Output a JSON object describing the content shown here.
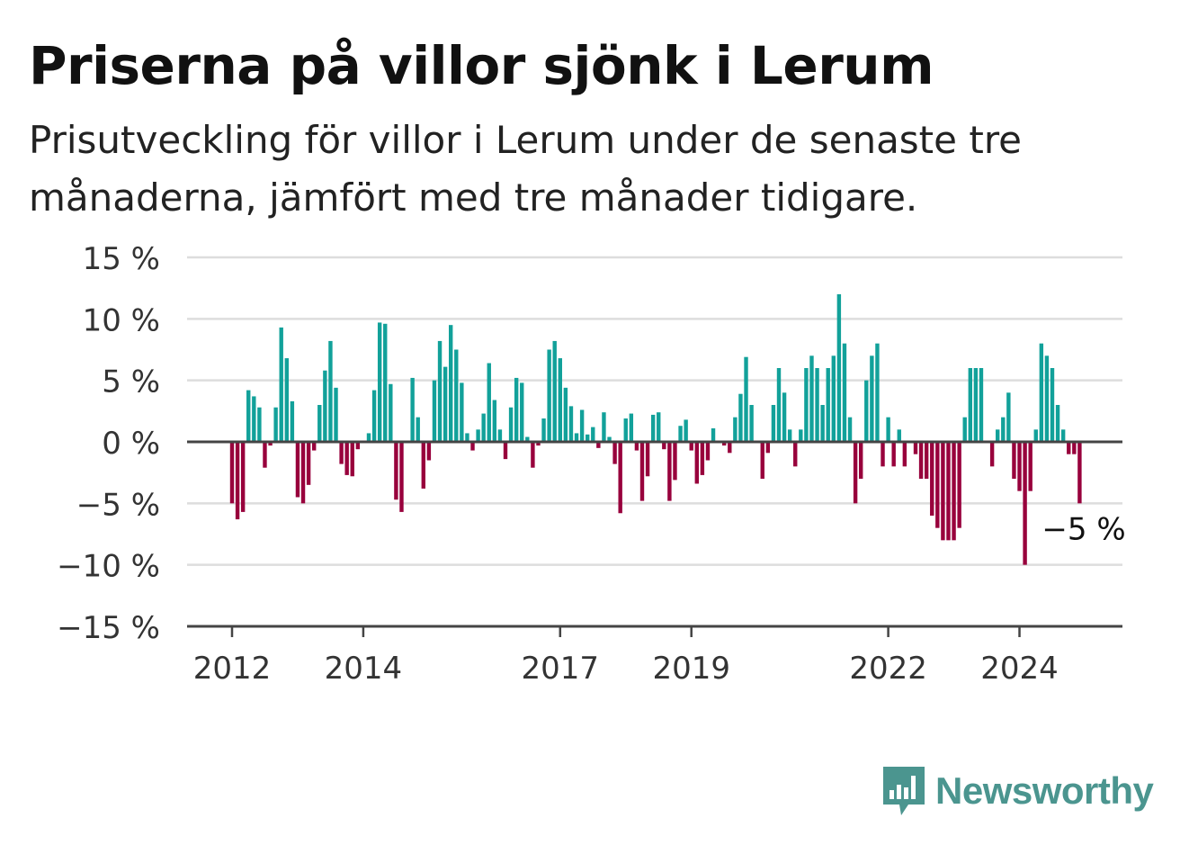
{
  "title": "Priserna på villor sjönk i Lerum",
  "subtitle": "Prisutveckling för villor i Lerum under de senaste tre månaderna, jämfört med tre månader tidigare.",
  "brand": "Newsworthy",
  "chart_data": {
    "type": "bar",
    "title": "Priserna på villor sjönk i Lerum",
    "subtitle": "Prisutveckling för villor i Lerum under de senaste tre månaderna, jämfört med tre månader tidigare.",
    "xlabel": "",
    "ylabel": "",
    "x_start": "2012-01",
    "x_frequency": "monthly",
    "ylim": [
      -15,
      15
    ],
    "yticks": [
      15,
      10,
      5,
      0,
      -5,
      -10,
      -15
    ],
    "ytick_labels": [
      "15 %",
      "10 %",
      "5 %",
      "0 %",
      "−5 %",
      "−10 %",
      "−15 %"
    ],
    "xticks": [
      "2012",
      "2014",
      "2017",
      "2019",
      "2022",
      "2024"
    ],
    "grid": true,
    "colors": {
      "positive": "#12a19a",
      "negative": "#98003c",
      "grid": "#dddddd",
      "axis": "#444444"
    },
    "annotation": {
      "text": "−5 %",
      "target": "last"
    },
    "values": [
      -5.0,
      -6.3,
      -5.7,
      4.2,
      3.7,
      2.8,
      -2.1,
      -0.3,
      2.8,
      9.3,
      6.8,
      3.3,
      -4.5,
      -5.0,
      -3.5,
      -0.7,
      3.0,
      5.8,
      8.2,
      4.4,
      -1.8,
      -2.7,
      -2.8,
      -0.6,
      0.0,
      0.7,
      4.2,
      9.7,
      9.6,
      4.7,
      -4.7,
      -5.7,
      0.1,
      5.2,
      2.0,
      -3.8,
      -1.5,
      5.0,
      8.2,
      6.1,
      9.5,
      7.5,
      4.8,
      0.7,
      -0.7,
      1.0,
      2.3,
      6.4,
      3.4,
      1.0,
      -1.4,
      2.8,
      5.2,
      4.8,
      0.4,
      -2.1,
      -0.3,
      1.9,
      7.5,
      8.2,
      6.8,
      4.4,
      2.9,
      0.7,
      2.6,
      0.6,
      1.2,
      -0.5,
      2.4,
      0.4,
      -1.8,
      -5.8,
      1.9,
      2.3,
      -0.7,
      -4.8,
      -2.8,
      2.2,
      2.4,
      -0.6,
      -4.8,
      -3.1,
      1.3,
      1.8,
      -0.7,
      -3.4,
      -2.7,
      -1.5,
      1.1,
      0.0,
      -0.3,
      -0.9,
      2.0,
      3.9,
      6.9,
      3.0,
      0.0,
      -3.0,
      -0.9,
      3.0,
      6.0,
      4.0,
      1.0,
      -2.0,
      1.0,
      6.0,
      7.0,
      6.0,
      3.0,
      6.0,
      7.0,
      12.0,
      8.0,
      2.0,
      -5.0,
      -3.0,
      5.0,
      7.0,
      8.0,
      -2.0,
      2.0,
      -2.0,
      1.0,
      -2.0,
      0.0,
      -1.0,
      -3.0,
      -3.0,
      -6.0,
      -7.0,
      -8.0,
      -8.0,
      -8.0,
      -7.0,
      2.0,
      6.0,
      6.0,
      6.0,
      0.0,
      -2.0,
      1.0,
      2.0,
      4.0,
      -3.0,
      -4.0,
      -10.0,
      -4.0,
      1.0,
      8.0,
      7.0,
      6.0,
      3.0,
      1.0,
      -1.0,
      -1.0,
      -5.0
    ]
  }
}
